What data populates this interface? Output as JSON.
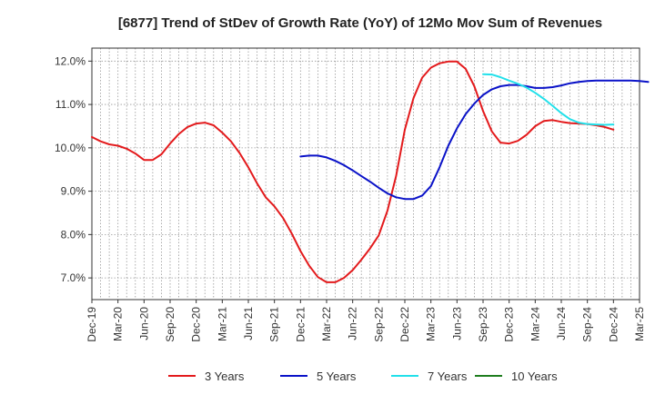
{
  "chart_data": {
    "type": "line",
    "title": "[6877]  Trend of StDev of Growth Rate (YoY) of 12Mo Mov Sum of Revenues",
    "xlabel": "",
    "ylabel": "",
    "ylim": [
      6.5,
      12.3
    ],
    "yticks": [
      7.0,
      8.0,
      9.0,
      10.0,
      11.0,
      12.0
    ],
    "ytick_labels": [
      "7.0%",
      "8.0%",
      "9.0%",
      "10.0%",
      "11.0%",
      "12.0%"
    ],
    "xtick_labels": [
      "Dec-19",
      "Mar-20",
      "Jun-20",
      "Sep-20",
      "Dec-20",
      "Mar-21",
      "Jun-21",
      "Sep-21",
      "Dec-21",
      "Mar-22",
      "Jun-22",
      "Sep-22",
      "Dec-22",
      "Mar-23",
      "Jun-23",
      "Sep-23",
      "Dec-23",
      "Mar-24",
      "Jun-24",
      "Sep-24",
      "Dec-24",
      "Mar-25"
    ],
    "x_start": "Dec-19",
    "x_end": "Mar-25",
    "grid": true,
    "legend_position": "bottom",
    "series": [
      {
        "name": "3 Years",
        "color": "#e31a1c",
        "start": "Dec-19",
        "values": [
          10.25,
          10.15,
          10.08,
          10.05,
          9.98,
          9.87,
          9.72,
          9.72,
          9.85,
          10.1,
          10.32,
          10.48,
          10.56,
          10.58,
          10.52,
          10.35,
          10.15,
          9.88,
          9.55,
          9.18,
          8.86,
          8.65,
          8.38,
          8.02,
          7.62,
          7.28,
          7.02,
          6.9,
          6.9,
          7.0,
          7.18,
          7.42,
          7.68,
          7.98,
          8.55,
          9.35,
          10.42,
          11.15,
          11.62,
          11.85,
          11.95,
          11.99,
          11.99,
          11.82,
          11.42,
          10.85,
          10.38,
          10.12,
          10.1,
          10.16,
          10.3,
          10.5,
          10.62,
          10.64,
          10.6,
          10.57,
          10.56,
          10.55,
          10.52,
          10.48,
          10.42
        ]
      },
      {
        "name": "5 Years",
        "color": "#0a12c8",
        "start": "Dec-21",
        "values": [
          9.8,
          9.82,
          9.82,
          9.78,
          9.7,
          9.6,
          9.48,
          9.35,
          9.22,
          9.08,
          8.95,
          8.86,
          8.82,
          8.82,
          8.9,
          9.12,
          9.55,
          10.05,
          10.45,
          10.78,
          11.02,
          11.22,
          11.35,
          11.42,
          11.45,
          11.45,
          11.42,
          11.38,
          11.38,
          11.4,
          11.44,
          11.49,
          11.52,
          11.54,
          11.55,
          11.55,
          11.55,
          11.55,
          11.55,
          11.54,
          11.52
        ]
      },
      {
        "name": "7 Years",
        "color": "#22e0ea",
        "start": "Sep-23",
        "values": [
          11.7,
          11.69,
          11.63,
          11.55,
          11.48,
          11.39,
          11.27,
          11.13,
          10.97,
          10.8,
          10.66,
          10.58,
          10.55,
          10.54,
          10.53,
          10.54
        ]
      },
      {
        "name": "10 Years",
        "color": "#1e7d1e",
        "start": "Dec-24",
        "values": []
      }
    ]
  }
}
